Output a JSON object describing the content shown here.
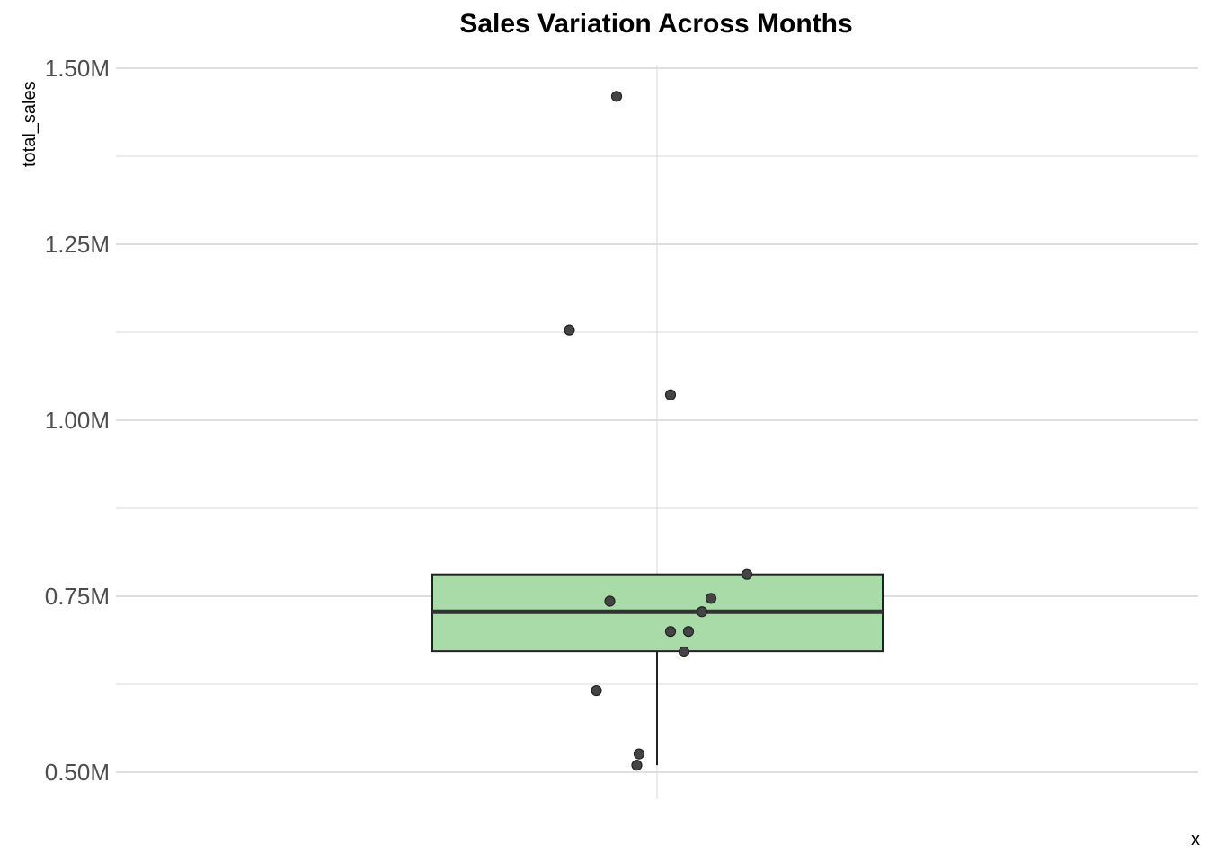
{
  "chart_data": {
    "type": "boxplot",
    "title": "Sales Variation Across Months",
    "xlabel": "x",
    "ylabel": "total_sales",
    "ylim": [
      0.46,
      1.51
    ],
    "yticks": [
      0.5,
      0.75,
      1.0,
      1.25,
      1.5
    ],
    "ytick_labels": [
      "0.50M",
      "0.75M",
      "1.00M",
      "1.25M",
      "1.50M"
    ],
    "grid": true,
    "box": {
      "q1": 0.672,
      "median": 0.728,
      "q3": 0.781,
      "whisker_low": 0.51,
      "whisker_high": 0.781,
      "fill": "#a8dba8",
      "stroke": "#222222"
    },
    "points": [
      {
        "x_jitter": -0.18,
        "y": 1.46
      },
      {
        "x_jitter": -0.39,
        "y": 1.128
      },
      {
        "x_jitter": 0.06,
        "y": 1.036
      },
      {
        "x_jitter": 0.4,
        "y": 0.781
      },
      {
        "x_jitter": 0.24,
        "y": 0.747
      },
      {
        "x_jitter": -0.21,
        "y": 0.743
      },
      {
        "x_jitter": 0.2,
        "y": 0.728
      },
      {
        "x_jitter": 0.06,
        "y": 0.7
      },
      {
        "x_jitter": 0.14,
        "y": 0.7
      },
      {
        "x_jitter": 0.12,
        "y": 0.671
      },
      {
        "x_jitter": -0.27,
        "y": 0.616
      },
      {
        "x_jitter": -0.08,
        "y": 0.526
      },
      {
        "x_jitter": -0.09,
        "y": 0.51
      }
    ],
    "point_color": "#444444"
  }
}
